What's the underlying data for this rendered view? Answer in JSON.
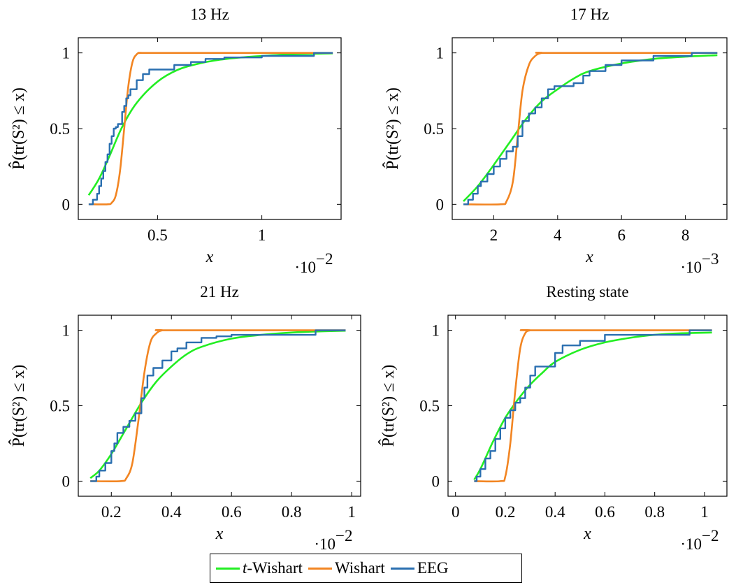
{
  "colors": {
    "t_wishart": "#22ee22",
    "wishart": "#f28522",
    "eeg": "#2a6fb0"
  },
  "legend": [
    {
      "key": "t_wishart",
      "prefix": "t",
      "label": "-Wishart"
    },
    {
      "key": "wishart",
      "prefix": "",
      "label": "Wishart"
    },
    {
      "key": "eeg",
      "prefix": "",
      "label": "EEG"
    }
  ],
  "chart_data": [
    {
      "type": "line",
      "title": "13 Hz",
      "xlabel": "x",
      "ylabel": "P̂(tr(S²) ≤ x)",
      "x_multiplier": "·10",
      "x_multiplier_exp": "−2",
      "xlim": [
        0.12,
        1.38
      ],
      "ylim": [
        -0.1,
        1.1
      ],
      "xticks": [
        {
          "v": 0.5,
          "label": "0.5"
        },
        {
          "v": 1,
          "label": "1"
        }
      ],
      "yticks": [
        {
          "v": 0,
          "label": "0"
        },
        {
          "v": 0.5,
          "label": "0.5"
        },
        {
          "v": 1,
          "label": "1"
        }
      ],
      "series": [
        {
          "name": "t-Wishart",
          "key": "t_wishart",
          "kind": "smooth",
          "x": [
            0.17,
            0.22,
            0.27,
            0.33,
            0.4,
            0.5,
            0.6,
            0.7,
            0.8,
            0.9,
            1.0,
            1.1,
            1.2,
            1.34
          ],
          "y": [
            0.06,
            0.17,
            0.32,
            0.51,
            0.67,
            0.81,
            0.89,
            0.93,
            0.955,
            0.97,
            0.98,
            0.988,
            0.993,
            0.997
          ]
        },
        {
          "name": "Wishart",
          "key": "wishart",
          "kind": "smooth",
          "x": [
            0.17,
            0.26,
            0.28,
            0.3,
            0.32,
            0.34,
            0.36,
            0.38,
            0.4,
            0.42,
            0.5,
            1.34
          ],
          "y": [
            0,
            0,
            0.01,
            0.06,
            0.22,
            0.5,
            0.78,
            0.94,
            0.99,
            1.0,
            1.0,
            1.0
          ]
        },
        {
          "name": "EEG",
          "key": "eeg",
          "kind": "step",
          "x": [
            0.17,
            0.19,
            0.21,
            0.22,
            0.23,
            0.24,
            0.25,
            0.26,
            0.27,
            0.28,
            0.29,
            0.3,
            0.31,
            0.33,
            0.34,
            0.35,
            0.36,
            0.37,
            0.4,
            0.43,
            0.46,
            0.52,
            0.58,
            0.66,
            0.73,
            0.82,
            1.0,
            1.25,
            1.34
          ],
          "y": [
            0,
            0.03,
            0.07,
            0.12,
            0.17,
            0.22,
            0.28,
            0.33,
            0.4,
            0.45,
            0.5,
            0.51,
            0.53,
            0.61,
            0.65,
            0.7,
            0.72,
            0.76,
            0.82,
            0.86,
            0.89,
            0.89,
            0.92,
            0.94,
            0.96,
            0.97,
            0.98,
            1.0,
            1.0
          ]
        }
      ]
    },
    {
      "type": "line",
      "title": "17 Hz",
      "xlabel": "x",
      "ylabel": "P̂(tr(S²) ≤ x)",
      "x_multiplier": "·10",
      "x_multiplier_exp": "−3",
      "xlim": [
        0.7,
        9.3
      ],
      "ylim": [
        -0.1,
        1.1
      ],
      "xticks": [
        {
          "v": 2,
          "label": "2"
        },
        {
          "v": 4,
          "label": "4"
        },
        {
          "v": 6,
          "label": "6"
        },
        {
          "v": 8,
          "label": "8"
        }
      ],
      "yticks": [
        {
          "v": 0,
          "label": "0"
        },
        {
          "v": 0.5,
          "label": "0.5"
        },
        {
          "v": 1,
          "label": "1"
        }
      ],
      "series": [
        {
          "name": "t-Wishart",
          "key": "t_wishart",
          "kind": "smooth",
          "x": [
            1.05,
            1.5,
            2.0,
            2.5,
            3.0,
            3.5,
            4.0,
            4.5,
            5.0,
            6.0,
            7.0,
            8.0,
            9.0
          ],
          "y": [
            0.02,
            0.12,
            0.26,
            0.41,
            0.56,
            0.68,
            0.76,
            0.83,
            0.88,
            0.93,
            0.96,
            0.975,
            0.985
          ]
        },
        {
          "name": "Wishart",
          "key": "wishart",
          "kind": "smooth",
          "x": [
            1.05,
            2.2,
            2.4,
            2.6,
            2.75,
            2.9,
            3.1,
            3.3,
            3.5,
            3.8,
            9.0
          ],
          "y": [
            0,
            0,
            0.02,
            0.15,
            0.45,
            0.75,
            0.92,
            0.98,
            1.0,
            1.0,
            1.0
          ]
        },
        {
          "name": "EEG",
          "key": "eeg",
          "kind": "step",
          "x": [
            1.05,
            1.2,
            1.35,
            1.5,
            1.6,
            1.8,
            2.0,
            2.2,
            2.4,
            2.6,
            2.75,
            2.9,
            3.1,
            3.3,
            3.5,
            3.7,
            3.9,
            4.1,
            4.5,
            4.8,
            5.0,
            5.5,
            6.0,
            7.0,
            8.2,
            9.0
          ],
          "y": [
            0,
            0.03,
            0.07,
            0.12,
            0.15,
            0.2,
            0.25,
            0.3,
            0.35,
            0.38,
            0.45,
            0.55,
            0.6,
            0.64,
            0.7,
            0.76,
            0.78,
            0.78,
            0.8,
            0.85,
            0.88,
            0.92,
            0.95,
            0.98,
            1.0,
            1.0
          ]
        }
      ]
    },
    {
      "type": "line",
      "title": "21 Hz",
      "xlabel": "x",
      "ylabel": "P̂(tr(S²) ≤ x)",
      "x_multiplier": "·10",
      "x_multiplier_exp": "−2",
      "xlim": [
        0.09,
        1.03
      ],
      "ylim": [
        -0.1,
        1.1
      ],
      "xticks": [
        {
          "v": 0.2,
          "label": "0.2"
        },
        {
          "v": 0.4,
          "label": "0.4"
        },
        {
          "v": 0.6,
          "label": "0.6"
        },
        {
          "v": 0.8,
          "label": "0.8"
        },
        {
          "v": 1,
          "label": "1"
        }
      ],
      "yticks": [
        {
          "v": 0,
          "label": "0"
        },
        {
          "v": 0.5,
          "label": "0.5"
        },
        {
          "v": 1,
          "label": "1"
        }
      ],
      "series": [
        {
          "name": "t-Wishart",
          "key": "t_wishart",
          "kind": "smooth",
          "x": [
            0.13,
            0.16,
            0.2,
            0.25,
            0.3,
            0.35,
            0.4,
            0.45,
            0.5,
            0.6,
            0.7,
            0.8,
            0.9,
            0.98
          ],
          "y": [
            0.02,
            0.07,
            0.18,
            0.35,
            0.52,
            0.66,
            0.76,
            0.84,
            0.89,
            0.945,
            0.97,
            0.985,
            0.993,
            0.997
          ]
        },
        {
          "name": "Wishart",
          "key": "wishart",
          "kind": "smooth",
          "x": [
            0.13,
            0.23,
            0.25,
            0.27,
            0.29,
            0.31,
            0.33,
            0.35,
            0.37,
            0.4,
            0.98
          ],
          "y": [
            0,
            0,
            0.02,
            0.12,
            0.4,
            0.72,
            0.92,
            0.98,
            1.0,
            1.0,
            1.0
          ]
        },
        {
          "name": "EEG",
          "key": "eeg",
          "kind": "step",
          "x": [
            0.13,
            0.15,
            0.16,
            0.18,
            0.2,
            0.21,
            0.22,
            0.24,
            0.26,
            0.28,
            0.3,
            0.31,
            0.32,
            0.34,
            0.36,
            0.37,
            0.4,
            0.42,
            0.45,
            0.5,
            0.55,
            0.6,
            0.88,
            0.98
          ],
          "y": [
            0,
            0.03,
            0.07,
            0.12,
            0.2,
            0.25,
            0.32,
            0.36,
            0.4,
            0.45,
            0.55,
            0.62,
            0.7,
            0.75,
            0.75,
            0.8,
            0.86,
            0.88,
            0.92,
            0.95,
            0.96,
            0.97,
            1.0,
            1.0
          ]
        }
      ]
    },
    {
      "type": "line",
      "title": "Resting state",
      "xlabel": "x",
      "ylabel": "P̂(tr(S²) ≤ x)",
      "x_multiplier": "·10",
      "x_multiplier_exp": "−2",
      "xlim": [
        -0.03,
        1.09
      ],
      "ylim": [
        -0.1,
        1.1
      ],
      "xticks": [
        {
          "v": 0,
          "label": "0"
        },
        {
          "v": 0.2,
          "label": "0.2"
        },
        {
          "v": 0.4,
          "label": "0.4"
        },
        {
          "v": 0.6,
          "label": "0.6"
        },
        {
          "v": 0.8,
          "label": "0.8"
        },
        {
          "v": 1,
          "label": "1"
        }
      ],
      "yticks": [
        {
          "v": 0,
          "label": "0"
        },
        {
          "v": 0.5,
          "label": "0.5"
        },
        {
          "v": 1,
          "label": "1"
        }
      ],
      "series": [
        {
          "name": "t-Wishart",
          "key": "t_wishart",
          "kind": "smooth",
          "x": [
            0.075,
            0.1,
            0.15,
            0.2,
            0.25,
            0.3,
            0.35,
            0.4,
            0.5,
            0.6,
            0.7,
            0.8,
            0.9,
            1.03
          ],
          "y": [
            0.01,
            0.08,
            0.26,
            0.42,
            0.54,
            0.64,
            0.72,
            0.79,
            0.87,
            0.92,
            0.95,
            0.97,
            0.98,
            0.985
          ]
        },
        {
          "name": "Wishart",
          "key": "wishart",
          "kind": "smooth",
          "x": [
            0.075,
            0.18,
            0.2,
            0.22,
            0.24,
            0.26,
            0.28,
            0.3,
            0.32,
            1.03
          ],
          "y": [
            0,
            0,
            0.03,
            0.25,
            0.6,
            0.88,
            0.98,
            1.0,
            1.0,
            1.0
          ]
        },
        {
          "name": "EEG",
          "key": "eeg",
          "kind": "step",
          "x": [
            0.075,
            0.085,
            0.1,
            0.12,
            0.14,
            0.16,
            0.18,
            0.2,
            0.22,
            0.24,
            0.26,
            0.28,
            0.3,
            0.32,
            0.36,
            0.4,
            0.43,
            0.5,
            0.6,
            0.94,
            1.03
          ],
          "y": [
            0,
            0.03,
            0.08,
            0.15,
            0.2,
            0.28,
            0.35,
            0.42,
            0.47,
            0.52,
            0.55,
            0.62,
            0.7,
            0.76,
            0.76,
            0.85,
            0.9,
            0.93,
            0.97,
            1.0,
            1.0
          ]
        }
      ]
    }
  ]
}
